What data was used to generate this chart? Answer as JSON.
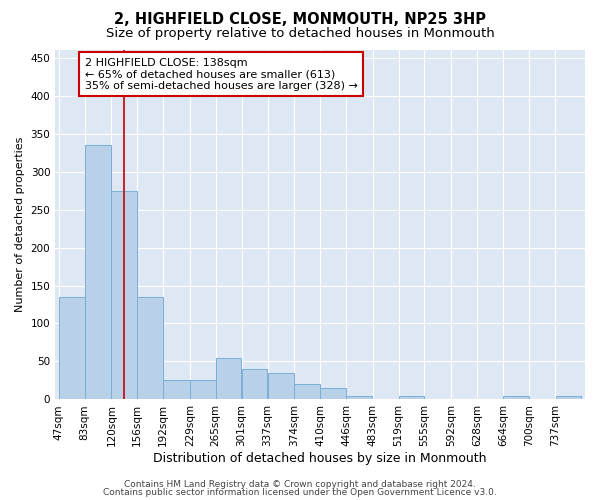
{
  "title": "2, HIGHFIELD CLOSE, MONMOUTH, NP25 3HP",
  "subtitle": "Size of property relative to detached houses in Monmouth",
  "xlabel": "Distribution of detached houses by size in Monmouth",
  "ylabel": "Number of detached properties",
  "bar_edges": [
    47,
    83,
    120,
    156,
    192,
    229,
    265,
    301,
    337,
    374,
    410,
    446,
    483,
    519,
    555,
    592,
    628,
    664,
    700,
    737,
    773
  ],
  "bar_heights": [
    135,
    335,
    275,
    135,
    25,
    25,
    55,
    40,
    35,
    20,
    15,
    5,
    0,
    5,
    0,
    0,
    0,
    5,
    0,
    5
  ],
  "bar_color": "#b8d0e8",
  "bar_edge_color": "#7aafd4",
  "vline_x": 138,
  "vline_color": "#cc0000",
  "annotation_text": "2 HIGHFIELD CLOSE: 138sqm\n← 65% of detached houses are smaller (613)\n35% of semi-detached houses are larger (328) →",
  "annotation_box_color": "#ffffff",
  "annotation_border_color": "#cc0000",
  "ylim": [
    0,
    460
  ],
  "yticks": [
    0,
    50,
    100,
    150,
    200,
    250,
    300,
    350,
    400,
    450
  ],
  "background_color": "#dde8f4",
  "footer_line1": "Contains HM Land Registry data © Crown copyright and database right 2024.",
  "footer_line2": "Contains public sector information licensed under the Open Government Licence v3.0.",
  "title_fontsize": 10.5,
  "subtitle_fontsize": 9.5,
  "xlabel_fontsize": 9,
  "ylabel_fontsize": 8,
  "tick_fontsize": 7.5,
  "annotation_fontsize": 8,
  "footer_fontsize": 6.5
}
